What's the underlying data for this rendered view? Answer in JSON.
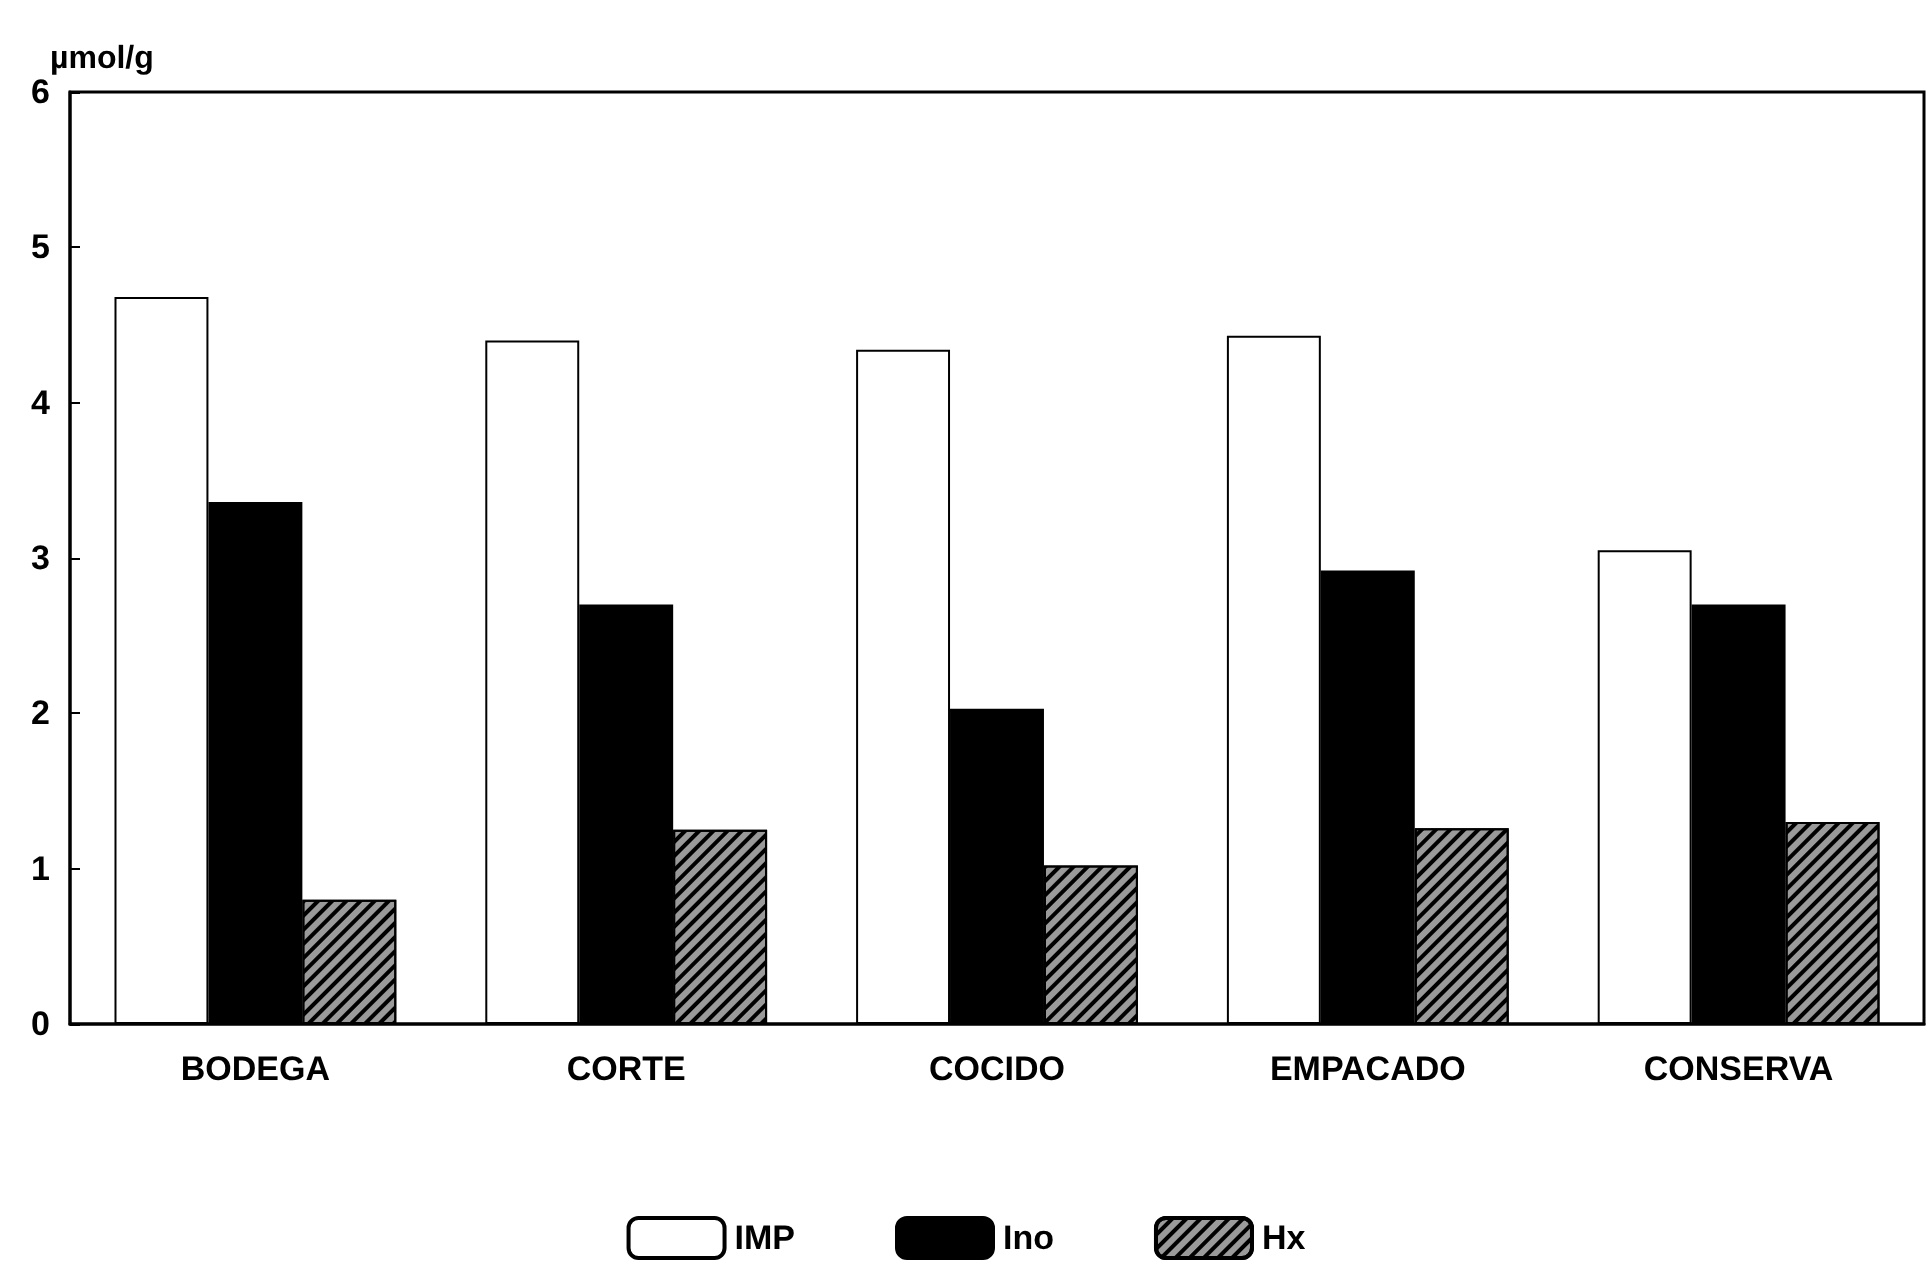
{
  "chart_data": {
    "type": "bar",
    "ylabel": "µmol/g",
    "categories": [
      "BODEGA",
      "CORTE",
      "COCIDO",
      "EMPACADO",
      "CONSERVA"
    ],
    "series": [
      {
        "name": "IMP",
        "color": "#ffffff",
        "values": [
          4.68,
          4.4,
          4.34,
          4.43,
          3.05
        ]
      },
      {
        "name": "Ino",
        "color": "#000000",
        "values": [
          3.36,
          2.7,
          2.03,
          2.92,
          2.7
        ]
      },
      {
        "name": "Hx",
        "color": "#9a9a9a",
        "values": [
          0.8,
          1.25,
          1.02,
          1.26,
          1.3
        ]
      }
    ],
    "ylim": [
      0,
      6
    ],
    "yticks": [
      0,
      1,
      2,
      3,
      4,
      5,
      6
    ],
    "grid": false,
    "legend": "bottom"
  }
}
